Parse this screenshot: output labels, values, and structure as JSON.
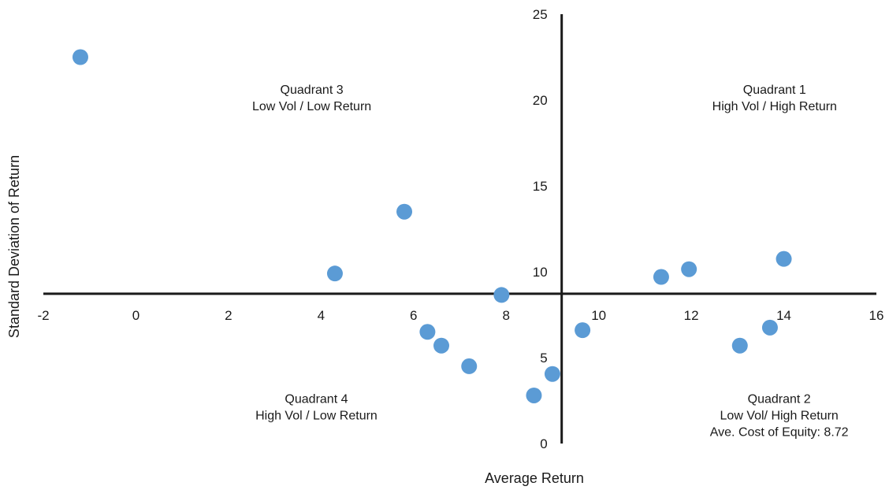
{
  "chart_data": {
    "type": "scatter",
    "title": "",
    "xlabel": "Average Return",
    "ylabel": "Standard Deviation of Return",
    "xlim": [
      -2,
      16
    ],
    "ylim": [
      0,
      25
    ],
    "x_ticks": [
      "-2",
      "0",
      "2",
      "4",
      "6",
      "8",
      "10",
      "12",
      "14",
      "16"
    ],
    "y_ticks": [
      "0",
      "5",
      "10",
      "15",
      "20",
      "25"
    ],
    "cross_axes": {
      "x": 9.2,
      "y": 8.72
    },
    "grid": false,
    "marker_color": "#5B9BD5",
    "axis_color": "#1a1a1a",
    "series": [
      {
        "x": [
          -1.2,
          4.3,
          5.8,
          7.9,
          6.3,
          6.6,
          7.2,
          8.6,
          9.0,
          9.65,
          11.35,
          11.95,
          13.05,
          13.7,
          14.0
        ],
        "y": [
          22.5,
          9.9,
          13.5,
          8.65,
          6.5,
          5.7,
          4.5,
          2.8,
          4.05,
          6.6,
          9.7,
          10.15,
          5.7,
          6.75,
          10.75
        ]
      }
    ],
    "annotations": [
      {
        "lines": [
          "Quadrant 1",
          "High Vol / High Return"
        ],
        "x": 13.8,
        "y": 20.0
      },
      {
        "lines": [
          "Quadrant 3",
          "Low Vol / Low Return"
        ],
        "x": 3.8,
        "y": 20.0
      },
      {
        "lines": [
          "Quadrant 4",
          "High Vol / Low Return"
        ],
        "x": 3.9,
        "y": 2.0
      },
      {
        "lines": [
          "Quadrant 2",
          "Low Vol/ High Return",
          "Ave. Cost of Equity: 8.72"
        ],
        "x": 13.9,
        "y": 2.0
      }
    ]
  }
}
